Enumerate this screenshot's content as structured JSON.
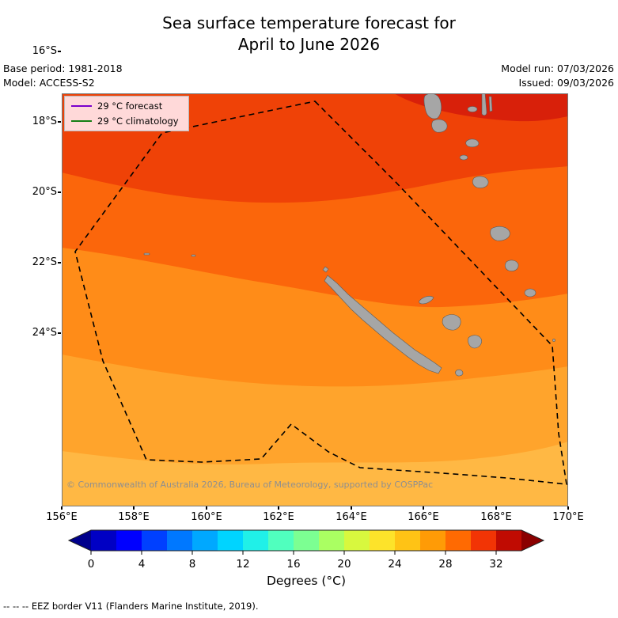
{
  "title": {
    "line1": "Sea surface temperature forecast for",
    "line2": "April to June 2026"
  },
  "meta": {
    "base_period": "Base period: 1981-2018",
    "model": "Model: ACCESS-S2",
    "model_run": "Model run: 07/03/2026",
    "issued": "Issued: 09/03/2026"
  },
  "legend": {
    "style": "background:#ffd9d9",
    "background": "#ffd9d9",
    "items": [
      {
        "label": "29 °C  forecast",
        "color": "#7a00cc"
      },
      {
        "label": "29 °C  climatology",
        "color": "#157f15"
      }
    ]
  },
  "map": {
    "lat_ticks": [
      "16°S",
      "18°S",
      "20°S",
      "22°S",
      "24°S"
    ],
    "lon_ticks": [
      "156°E",
      "158°E",
      "160°E",
      "162°E",
      "164°E",
      "166°E",
      "168°E",
      "170°E"
    ],
    "copyright": "© Commonwealth of Australia 2026, Bureau of Meteorology, supported by COSPPac",
    "land_color": "#a6a6a6",
    "bands": [
      {
        "temp_c": "29+",
        "color": "#d8200a"
      },
      {
        "temp_c": "28-29",
        "color": "#ef4207"
      },
      {
        "temp_c": "27-28",
        "color": "#fb660b"
      },
      {
        "temp_c": "26-27",
        "color": "#ff8c18"
      },
      {
        "temp_c": "25-26",
        "color": "#ffa42c"
      },
      {
        "temp_c": "24-25",
        "color": "#ffb844"
      }
    ]
  },
  "colorbar": {
    "ticks": [
      "0",
      "4",
      "8",
      "12",
      "16",
      "20",
      "24",
      "28",
      "32"
    ],
    "label": "Degrees (°C)",
    "left_arrow": "#00008c",
    "right_arrow": "#8b0000",
    "segments": [
      "#0000c4",
      "#0000ff",
      "#0040ff",
      "#0078ff",
      "#00a8ff",
      "#00d4ff",
      "#20f0e8",
      "#50ffbe",
      "#7cff92",
      "#aaff62",
      "#d8f83e",
      "#fde32a",
      "#ffc315",
      "#ff9b06",
      "#ff6a02",
      "#f23405",
      "#c00b02"
    ]
  },
  "footnote": "--  --  -- EEZ border V11 (Flanders Marine Institute, 2019).",
  "chart_data": {
    "type": "filled_contour_map",
    "variable": "Sea surface temperature forecast",
    "period": "April to June 2026",
    "model": "ACCESS-S2",
    "base_period": "1981-2018",
    "model_run": "07/03/2026",
    "issued": "09/03/2026",
    "lon_range_deg_e": [
      156,
      170.5
    ],
    "lat_range_deg_s": [
      14.5,
      26.5
    ],
    "units": "°C",
    "colorbar_ticks": [
      0,
      4,
      8,
      12,
      16,
      20,
      24,
      28,
      32
    ],
    "sst_bands": [
      {
        "range_c": "29+",
        "area": "far north-east corner near Vanuatu"
      },
      {
        "range_c": "28-29",
        "area": "north of about 17°S"
      },
      {
        "range_c": "27-28",
        "area": "about 17°S to 19.5°S"
      },
      {
        "range_c": "26-27",
        "area": "about 19.5°S to 22°S (around New Caledonia)"
      },
      {
        "range_c": "25-26",
        "area": "about 22°S to 24.5°S"
      },
      {
        "range_c": "24-25",
        "area": "south of about 24.5°S"
      }
    ],
    "contours": [
      {
        "value_c": 29,
        "type": "forecast",
        "color": "#7a00cc"
      },
      {
        "value_c": 29,
        "type": "climatology",
        "color": "#157f15"
      }
    ],
    "features": [
      "New Caledonia (Grande Terre)",
      "Loyalty Islands",
      "Vanuatu island chain",
      "EEZ border shown as dashed polygon"
    ]
  }
}
